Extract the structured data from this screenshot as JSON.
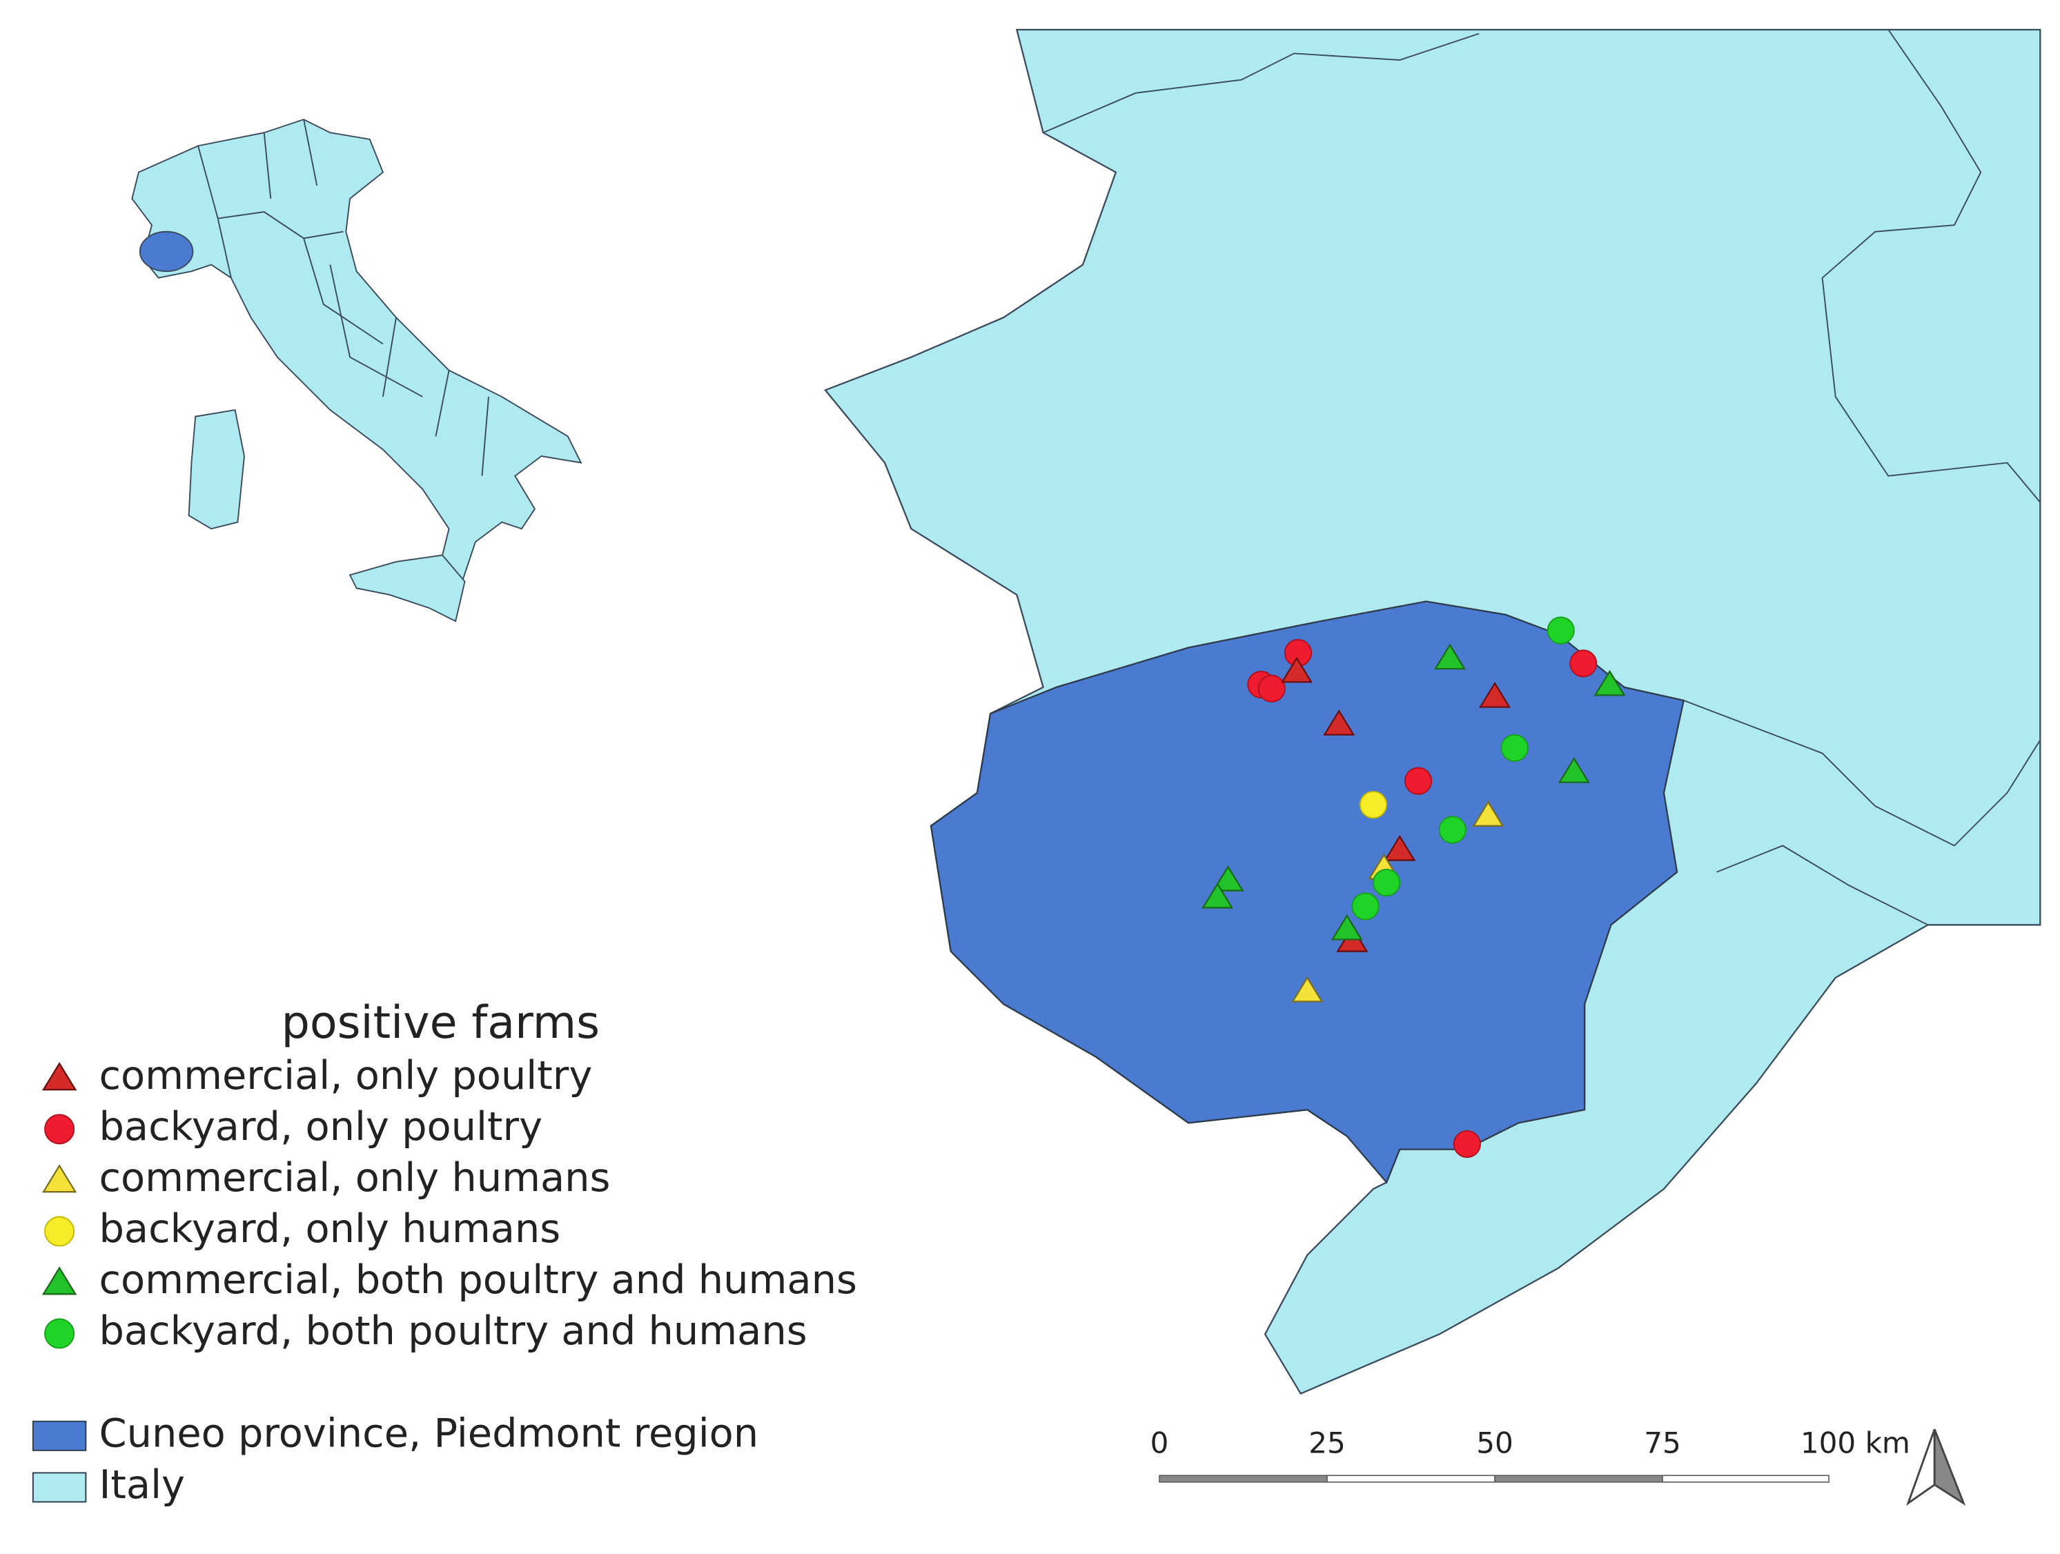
{
  "legend": {
    "title": "positive farms",
    "items": [
      {
        "label": "commercial, only poultry"
      },
      {
        "label": "backyard, only poultry"
      },
      {
        "label": "commercial, only humans"
      },
      {
        "label": "backyard, only humans"
      },
      {
        "label": "commercial, both poultry and humans"
      },
      {
        "label": "backyard, both poultry and humans"
      }
    ]
  },
  "area_legend": {
    "items": [
      {
        "label": "Cuneo province, Piedmont region"
      },
      {
        "label": "Italy"
      }
    ]
  },
  "scale_bar": {
    "labels": [
      "0",
      "25",
      "50",
      "75",
      "100 km"
    ]
  }
}
